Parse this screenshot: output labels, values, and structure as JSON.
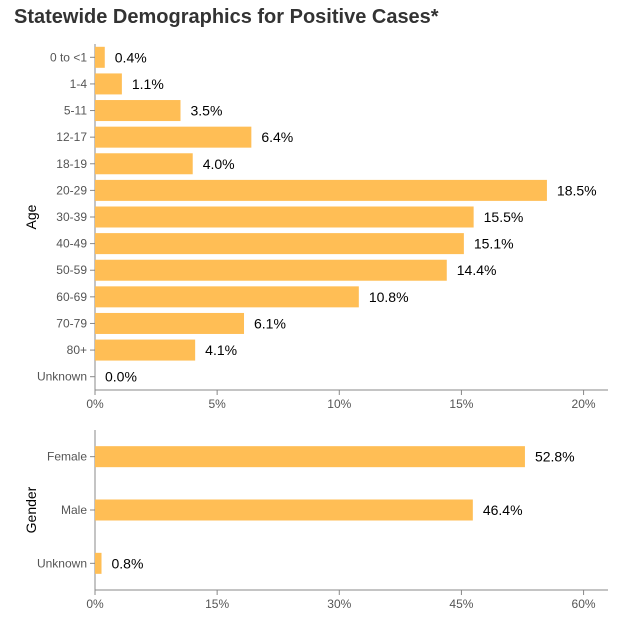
{
  "title": "Statewide Demographics for Positive Cases*",
  "colors": {
    "bar": "#FFBE55",
    "axis": "#888888",
    "tick_text": "#555555"
  },
  "chart_data": [
    {
      "type": "bar",
      "orientation": "horizontal",
      "ylabel": "Age",
      "categories": [
        "0 to <1",
        "1-4",
        "5-11",
        "12-17",
        "18-19",
        "20-29",
        "30-39",
        "40-49",
        "50-59",
        "60-69",
        "70-79",
        "80+",
        "Unknown"
      ],
      "values": [
        0.4,
        1.1,
        3.5,
        6.4,
        4.0,
        18.5,
        15.5,
        15.1,
        14.4,
        10.8,
        6.1,
        4.1,
        0.0
      ],
      "data_labels": [
        "0.4%",
        "1.1%",
        "3.5%",
        "6.4%",
        "4.0%",
        "18.5%",
        "15.5%",
        "15.1%",
        "14.4%",
        "10.8%",
        "6.1%",
        "4.1%",
        "0.0%"
      ],
      "xlim": [
        0,
        21
      ],
      "xticks": [
        0,
        5,
        10,
        15,
        20
      ],
      "xtick_labels": [
        "0%",
        "5%",
        "10%",
        "15%",
        "20%"
      ]
    },
    {
      "type": "bar",
      "orientation": "horizontal",
      "ylabel": "Gender",
      "categories": [
        "Female",
        "Male",
        "Unknown"
      ],
      "values": [
        52.8,
        46.4,
        0.8
      ],
      "data_labels": [
        "52.8%",
        "46.4%",
        "0.8%"
      ],
      "xlim": [
        0,
        63
      ],
      "xticks": [
        0,
        15,
        30,
        45,
        60
      ],
      "xtick_labels": [
        "0%",
        "15%",
        "30%",
        "45%",
        "60%"
      ]
    }
  ]
}
